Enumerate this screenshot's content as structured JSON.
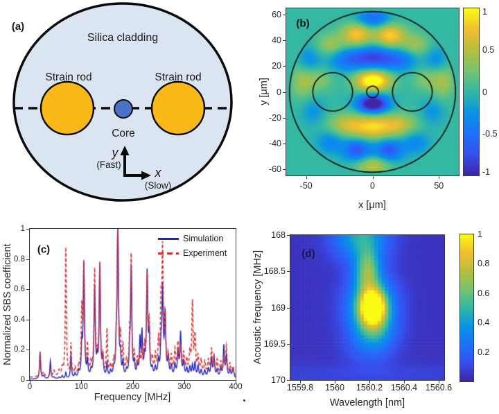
{
  "panels": {
    "a": {
      "tag": "(a)",
      "cladding": "Silica cladding",
      "rod_left": "Strain rod",
      "rod_right": "Strain rod",
      "core": "Core",
      "y_axis": "y",
      "y_sub": "(Fast)",
      "x_axis": "x",
      "x_sub": "(Slow)",
      "colors": {
        "cladding": "#dbe5f1",
        "rod": "#fbb918",
        "core": "#4a73c8",
        "outline": "#0a0a0a"
      }
    },
    "b": {
      "tag": "(b)"
    },
    "c": {
      "tag": "(c)"
    },
    "d": {
      "tag": "(d)",
      "tag_color": "#17174a"
    }
  },
  "chart_data": [
    {
      "id": "b",
      "type": "heatmap",
      "xlabel": "x [μm]",
      "ylabel": "y [μm]",
      "xlim": [
        -65,
        65
      ],
      "ylim": [
        -65,
        65
      ],
      "xticks": [
        -50,
        0,
        50
      ],
      "yticks": [
        60,
        40,
        20,
        0,
        -20,
        -40,
        -60
      ],
      "clim": [
        -1,
        1
      ],
      "colorbar_ticks": [
        1,
        0.5,
        0,
        -0.5,
        -1
      ],
      "background_value": 0,
      "colormap": "parula",
      "geometry_um": {
        "fiber_radius": 62.5,
        "rod_offset": 30,
        "rod_radius": 15,
        "core_radius": 4.5
      },
      "field_blobs": [
        [
          0,
          9,
          9,
          5.5,
          1.25
        ],
        [
          0,
          -9,
          8,
          5,
          -1.3
        ],
        [
          0,
          27,
          12,
          6.5,
          -0.8
        ],
        [
          -21,
          25,
          9,
          6,
          -0.4
        ],
        [
          21,
          25,
          9,
          6,
          -0.4
        ],
        [
          0,
          -27,
          12,
          6.5,
          0.85
        ],
        [
          -21,
          -25,
          9,
          6,
          0.45
        ],
        [
          21,
          -25,
          9,
          6,
          0.45
        ],
        [
          -12,
          45,
          8,
          6.5,
          0.8
        ],
        [
          13,
          44,
          8,
          6.5,
          0.85
        ],
        [
          -32,
          37,
          7,
          6,
          0.4
        ],
        [
          32,
          37,
          7,
          6,
          0.4
        ],
        [
          0,
          57,
          9,
          5,
          -0.6
        ],
        [
          -12,
          -45,
          7.5,
          6,
          -0.7
        ],
        [
          12,
          -45,
          7.5,
          6,
          -0.7
        ],
        [
          -32,
          -39,
          7,
          6,
          -0.35
        ],
        [
          32,
          -39,
          7,
          6,
          -0.35
        ],
        [
          0,
          -57,
          9,
          5,
          0.55
        ],
        [
          -53,
          8,
          6,
          9,
          0.4
        ],
        [
          53,
          8,
          6,
          9,
          0.4
        ],
        [
          -48,
          25,
          6,
          7,
          -0.3
        ],
        [
          48,
          25,
          6,
          7,
          -0.3
        ],
        [
          -45,
          -15,
          6,
          7,
          -0.25
        ],
        [
          45,
          -15,
          6,
          7,
          -0.25
        ],
        [
          -40,
          10,
          7,
          6,
          0.3
        ],
        [
          40,
          10,
          7,
          6,
          0.3
        ]
      ]
    },
    {
      "id": "c",
      "type": "line",
      "xlabel": "Frequency [MHz]",
      "ylabel": "Normalized SBS coefficient",
      "xlim": [
        0,
        400
      ],
      "ylim": [
        0,
        1
      ],
      "xticks": [
        0,
        100,
        200,
        300,
        400
      ],
      "yticks": [
        0,
        0.2,
        0.4,
        0.6,
        0.8,
        1
      ],
      "legend_position": "top-right",
      "series": [
        {
          "name": "Simulation",
          "color": "#2323bd",
          "style": "solid"
        },
        {
          "name": "Experiment",
          "color": "#dc3232",
          "style": "dashed"
        }
      ],
      "baseline": {
        "sim": 0.005,
        "exp": 0.018
      },
      "peaks_f_sim_exp_width": [
        [
          20,
          0.18,
          0.16,
          1.2
        ],
        [
          27,
          0.02,
          0.03,
          2
        ],
        [
          40,
          0.12,
          0.04,
          1.2
        ],
        [
          47,
          0.01,
          0.04,
          2
        ],
        [
          57,
          0.01,
          0.04,
          2
        ],
        [
          63,
          0.02,
          0.05,
          1.5
        ],
        [
          70,
          0.04,
          0.85,
          1.2
        ],
        [
          80,
          0.16,
          0.21,
          1.2
        ],
        [
          88,
          0.03,
          0.05,
          1.5
        ],
        [
          95,
          0.04,
          0.06,
          1.5
        ],
        [
          101,
          0.2,
          0.42,
          1.3
        ],
        [
          105,
          0.76,
          0.73,
          1.4
        ],
        [
          112,
          0.1,
          0.19,
          1.3
        ],
        [
          119,
          0.04,
          0.08,
          1.5
        ],
        [
          126,
          0.6,
          0.69,
          1.4
        ],
        [
          131,
          0.1,
          0.1,
          1.3
        ],
        [
          136,
          0.74,
          0.73,
          1.4
        ],
        [
          142,
          0.13,
          0.1,
          1.3
        ],
        [
          150,
          0.09,
          0.3,
          1.3
        ],
        [
          157,
          0.04,
          0.06,
          1.5
        ],
        [
          163,
          0.05,
          0.08,
          1.5
        ],
        [
          168,
          0.17,
          0.15,
          1.2
        ],
        [
          171,
          1.02,
          1.02,
          1.5
        ],
        [
          176,
          0.12,
          0.22,
          1.3
        ],
        [
          181,
          0.09,
          0.18,
          1.3
        ],
        [
          188,
          0.04,
          0.08,
          1.5
        ],
        [
          194,
          0.15,
          0.2,
          1.3
        ],
        [
          197,
          0.72,
          0.78,
          1.4
        ],
        [
          203,
          0.08,
          0.12,
          1.4
        ],
        [
          209,
          0.06,
          0.1,
          1.5
        ],
        [
          214,
          0.24,
          0.12,
          1.4
        ],
        [
          218,
          0.28,
          0.14,
          1.4
        ],
        [
          223,
          0.1,
          0.16,
          1.4
        ],
        [
          228,
          0.68,
          0.63,
          1.5
        ],
        [
          232,
          0.25,
          0.3,
          1.4
        ],
        [
          238,
          0.05,
          0.1,
          1.6
        ],
        [
          244,
          0.06,
          0.12,
          1.6
        ],
        [
          250,
          0.1,
          0.2,
          1.5
        ],
        [
          255,
          0.18,
          0.4,
          1.4
        ],
        [
          258,
          0.56,
          0.78,
          1.5
        ],
        [
          263,
          0.4,
          0.35,
          1.5
        ],
        [
          269,
          0.12,
          0.12,
          1.5
        ],
        [
          275,
          0.07,
          0.12,
          1.7
        ],
        [
          282,
          0.08,
          0.16,
          1.7
        ],
        [
          288,
          0.16,
          0.2,
          1.6
        ],
        [
          293,
          0.29,
          0.18,
          1.5
        ],
        [
          299,
          0.1,
          0.14,
          1.6
        ],
        [
          305,
          0.06,
          0.1,
          1.7
        ],
        [
          311,
          0.07,
          0.14,
          1.6
        ],
        [
          316,
          0.08,
          0.47,
          1.4
        ],
        [
          321,
          0.1,
          0.25,
          1.5
        ],
        [
          327,
          0.08,
          0.12,
          1.6
        ],
        [
          333,
          0.05,
          0.1,
          1.7
        ],
        [
          340,
          0.05,
          0.09,
          1.8
        ],
        [
          347,
          0.06,
          0.1,
          1.8
        ],
        [
          353,
          0.13,
          0.17,
          1.5
        ],
        [
          358,
          0.14,
          0.11,
          1.5
        ],
        [
          364,
          0.05,
          0.1,
          1.7
        ],
        [
          371,
          0.06,
          0.09,
          1.7
        ],
        [
          377,
          0.21,
          0.11,
          1.4
        ],
        [
          382,
          0.14,
          0.19,
          1.5
        ],
        [
          389,
          0.05,
          0.08,
          1.8
        ],
        [
          395,
          0.07,
          0.06,
          1.8
        ]
      ]
    },
    {
      "id": "d",
      "type": "heatmap",
      "xlabel": "Wavelength [nm]",
      "ylabel": "Acoustic frequency [MHz]",
      "xlim": [
        1559.744,
        1560.632
      ],
      "ylim": [
        168,
        170
      ],
      "y_axis_reversed": true,
      "xticks": [
        1559.8,
        1560,
        1560.2,
        1560.4,
        1560.6
      ],
      "yticks": [
        168,
        168.5,
        169,
        169.5,
        170
      ],
      "clim": [
        0,
        1
      ],
      "colorbar_ticks": [
        1,
        0.8,
        0.6,
        0.4,
        0.2
      ],
      "background_value": 0.04,
      "colormap": "parula",
      "grid": {
        "nx": 44,
        "ny": 42
      },
      "blobs": [
        [
          1560.22,
          169.0,
          0.05,
          0.16,
          1.0
        ],
        [
          1560.21,
          169.0,
          0.1,
          0.3,
          0.5
        ],
        [
          1560.19,
          168.5,
          0.05,
          0.22,
          0.5
        ],
        [
          1560.15,
          168.0,
          0.11,
          0.25,
          0.42
        ],
        [
          1560.23,
          169.33,
          0.08,
          0.16,
          0.22
        ],
        [
          1560.2,
          169.6,
          0.1,
          0.15,
          0.1
        ],
        [
          1560.2,
          169.92,
          0.5,
          0.1,
          0.06
        ]
      ]
    }
  ]
}
